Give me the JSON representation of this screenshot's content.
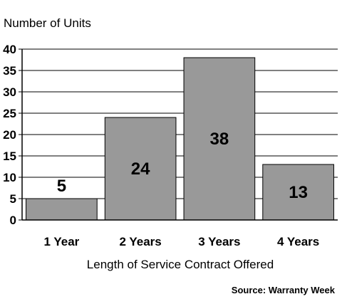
{
  "chart_data": {
    "type": "bar",
    "ylabel": "Number of Units",
    "xlabel": "Length of Service Contract Offered",
    "categories": [
      "1 Year",
      "2 Years",
      "3 Years",
      "4 Years"
    ],
    "values": [
      5,
      24,
      38,
      13
    ],
    "data_labels": [
      "5",
      "24",
      "38",
      "13"
    ],
    "ylim": [
      0,
      40
    ],
    "yticks": [
      0,
      5,
      10,
      15,
      20,
      25,
      30,
      35,
      40
    ],
    "ytick_labels": [
      "0",
      "5",
      "10",
      "15",
      "20",
      "25",
      "30",
      "35",
      "40"
    ],
    "grid": true,
    "bar_color": "#999999",
    "source": "Source: Warranty Week"
  }
}
